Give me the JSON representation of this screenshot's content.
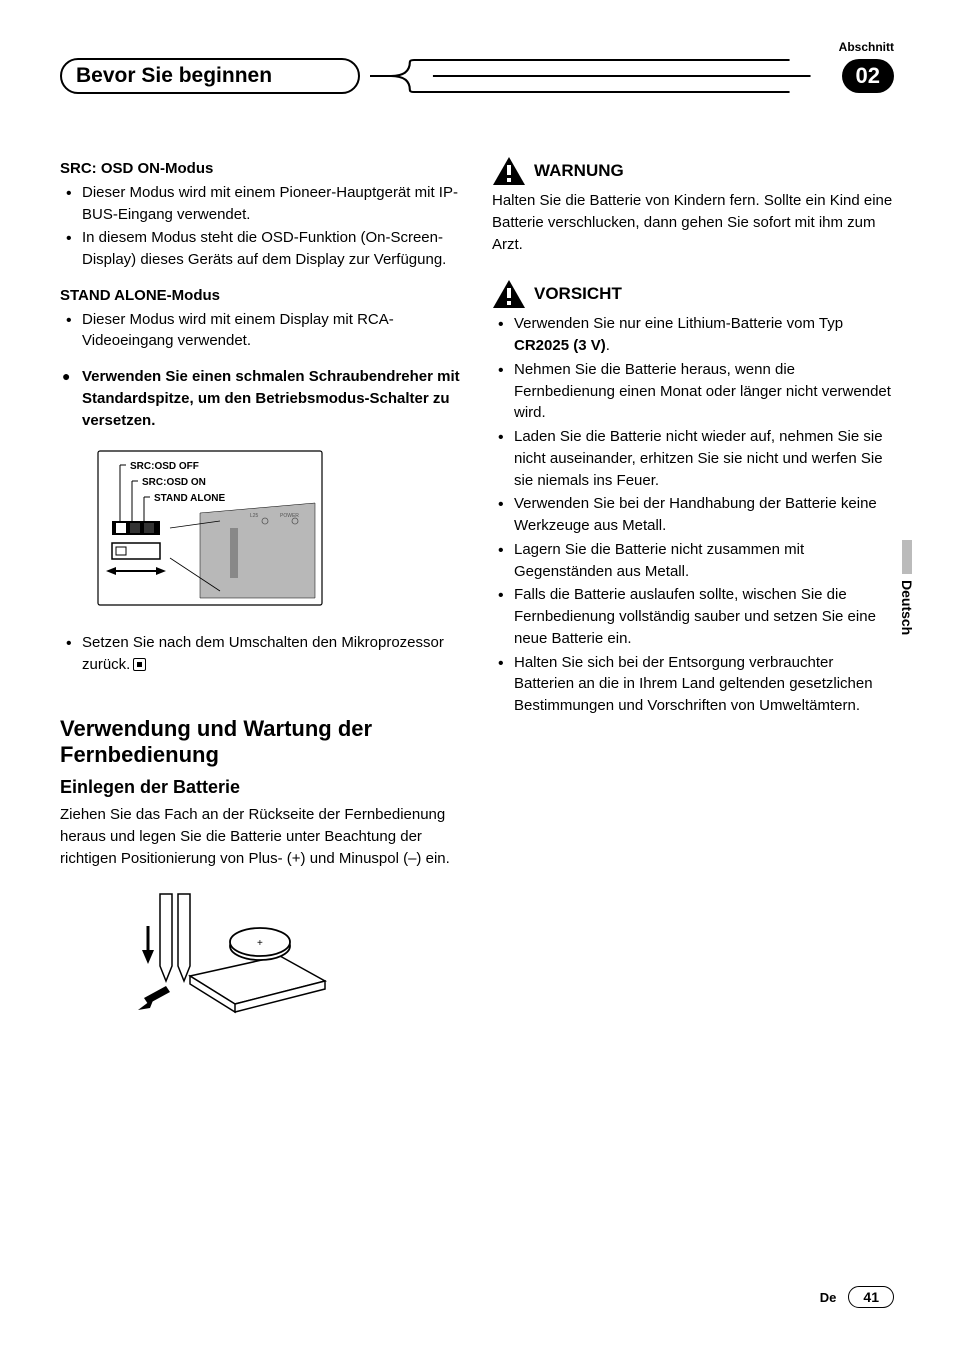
{
  "header": {
    "section_label": "Abschnitt",
    "title": "Bevor Sie beginnen",
    "section_number": "02"
  },
  "left_col": {
    "mode1": {
      "heading_prefix": "SRC: OSD ON",
      "heading_suffix": "-Modus",
      "bullets": [
        "Dieser Modus wird mit einem Pioneer-Hauptgerät mit IP-BUS-Eingang verwendet.",
        "In diesem Modus steht die OSD-Funktion (On-Screen-Display) dieses Geräts auf dem Display zur Verfügung."
      ]
    },
    "mode2": {
      "heading_prefix": "STAND ALONE",
      "heading_suffix": "-Modus",
      "bullets": [
        "Dieser Modus wird mit einem Display mit RCA-Videoeingang verwendet."
      ]
    },
    "tip": "Verwenden Sie einen schmalen Schraubendreher mit Standardspitze, um den Betriebsmodus-Schalter zu versetzen.",
    "switch_diagram": {
      "labels": [
        "SRC:OSD OFF",
        "SRC:OSD ON",
        "STAND ALONE"
      ],
      "positions": 3
    },
    "post_diagram_bullet": "Setzen Sie nach dem Umschalten den Mikroprozessor zurück.",
    "h2": "Verwendung und Wartung der Fernbedienung",
    "h3": "Einlegen der Batterie",
    "battery_para": "Ziehen Sie das Fach an der Rückseite der Fernbedienung heraus und legen Sie die Batterie unter Beachtung der richtigen Positionierung von Plus- (+) und Minuspol (–) ein."
  },
  "right_col": {
    "warning_label": "WARNUNG",
    "warning_text": "Halten Sie die Batterie von Kindern fern. Sollte ein Kind eine Batterie verschlucken, dann gehen Sie sofort mit ihm zum Arzt.",
    "caution_label": "VORSICHT",
    "caution_bullets": [
      {
        "pre": "Verwenden Sie nur eine Lithium-Batterie vom Typ ",
        "bold": "CR2025 (3 V)",
        "post": "."
      },
      {
        "pre": "Nehmen Sie die Batterie heraus, wenn die Fernbedienung einen Monat oder länger nicht verwendet wird.",
        "bold": "",
        "post": ""
      },
      {
        "pre": "Laden Sie die Batterie nicht wieder auf, nehmen Sie sie nicht auseinander, erhitzen Sie sie nicht und werfen Sie sie niemals ins Feuer.",
        "bold": "",
        "post": ""
      },
      {
        "pre": "Verwenden Sie bei der Handhabung der Batterie keine Werkzeuge aus Metall.",
        "bold": "",
        "post": ""
      },
      {
        "pre": "Lagern Sie die Batterie nicht zusammen mit Gegenständen aus Metall.",
        "bold": "",
        "post": ""
      },
      {
        "pre": "Falls die Batterie auslaufen sollte, wischen Sie die Fernbedienung vollständig sauber und setzen Sie eine neue Batterie ein.",
        "bold": "",
        "post": ""
      },
      {
        "pre": "Halten Sie sich bei der Entsorgung verbrauchter Batterien an die in Ihrem Land geltenden gesetzlichen Bestimmungen und Vorschriften von Umweltämtern.",
        "bold": "",
        "post": ""
      }
    ]
  },
  "side_tab": "Deutsch",
  "footer": {
    "lang": "De",
    "page": "41"
  },
  "colors": {
    "text": "#000000",
    "bg": "#ffffff",
    "gray": "#bbbbbb",
    "diagram_gray": "#b8b8b8"
  }
}
